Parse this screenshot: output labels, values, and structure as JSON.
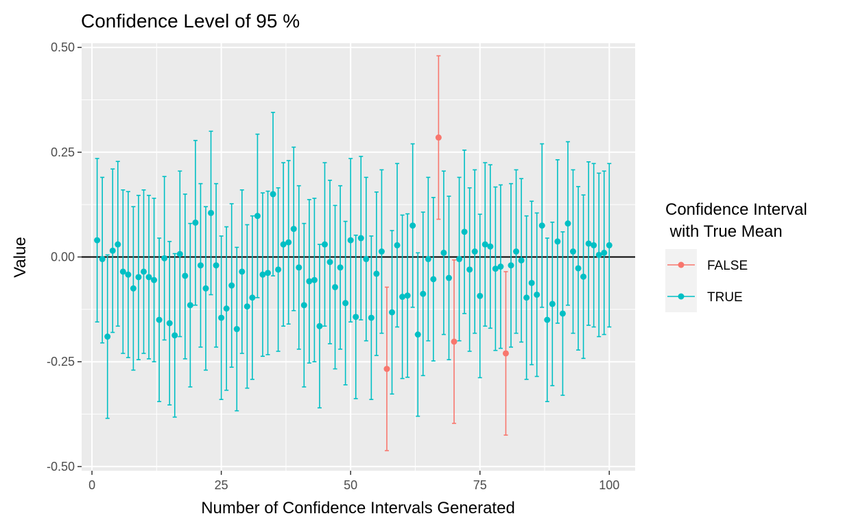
{
  "chart_data": {
    "type": "errorbar",
    "title": "Confidence Level of 95 %",
    "xlabel": "Number of Confidence Intervals Generated",
    "ylabel": "Value",
    "xlim": [
      -2,
      105
    ],
    "ylim": [
      -0.51,
      0.51
    ],
    "x_ticks": [
      {
        "value": 0,
        "label": "0"
      },
      {
        "value": 25,
        "label": "25"
      },
      {
        "value": 50,
        "label": "50"
      },
      {
        "value": 75,
        "label": "75"
      },
      {
        "value": 100,
        "label": "100"
      }
    ],
    "y_ticks": [
      {
        "value": -0.5,
        "label": "-0.50"
      },
      {
        "value": -0.25,
        "label": "-0.25"
      },
      {
        "value": 0,
        "label": "0.00"
      },
      {
        "value": 0.25,
        "label": "0.25"
      },
      {
        "value": 0.5,
        "label": "0.50"
      }
    ],
    "reference_line": 0,
    "grid": true,
    "legend": {
      "title_lines": [
        "Confidence Interval",
        " with True Mean"
      ],
      "position": "right",
      "entries": [
        {
          "label": "FALSE",
          "color": "#F8766D"
        },
        {
          "label": "TRUE",
          "color": "#00BFC4"
        }
      ]
    },
    "colors": {
      "FALSE": "#F8766D",
      "TRUE": "#00BFC4",
      "panel": "#EBEBEB",
      "grid": "#FFFFFF",
      "reference": "#000000"
    },
    "points": [
      {
        "x": 1,
        "mean": 0.04,
        "lower": -0.155,
        "upper": 0.235,
        "contains_true_mean": "TRUE"
      },
      {
        "x": 2,
        "mean": -0.005,
        "lower": -0.205,
        "upper": 0.19,
        "contains_true_mean": "TRUE"
      },
      {
        "x": 3,
        "mean": -0.19,
        "lower": -0.385,
        "upper": 0.005,
        "contains_true_mean": "TRUE"
      },
      {
        "x": 4,
        "mean": 0.015,
        "lower": -0.18,
        "upper": 0.21,
        "contains_true_mean": "TRUE"
      },
      {
        "x": 5,
        "mean": 0.03,
        "lower": -0.165,
        "upper": 0.228,
        "contains_true_mean": "TRUE"
      },
      {
        "x": 6,
        "mean": -0.035,
        "lower": -0.23,
        "upper": 0.16,
        "contains_true_mean": "TRUE"
      },
      {
        "x": 7,
        "mean": -0.042,
        "lower": -0.24,
        "upper": 0.156,
        "contains_true_mean": "TRUE"
      },
      {
        "x": 8,
        "mean": -0.075,
        "lower": -0.27,
        "upper": 0.12,
        "contains_true_mean": "TRUE"
      },
      {
        "x": 9,
        "mean": -0.048,
        "lower": -0.245,
        "upper": 0.147,
        "contains_true_mean": "TRUE"
      },
      {
        "x": 10,
        "mean": -0.035,
        "lower": -0.23,
        "upper": 0.16,
        "contains_true_mean": "TRUE"
      },
      {
        "x": 11,
        "mean": -0.048,
        "lower": -0.243,
        "upper": 0.147,
        "contains_true_mean": "TRUE"
      },
      {
        "x": 12,
        "mean": -0.055,
        "lower": -0.25,
        "upper": 0.14,
        "contains_true_mean": "TRUE"
      },
      {
        "x": 13,
        "mean": -0.15,
        "lower": -0.345,
        "upper": 0.045,
        "contains_true_mean": "TRUE"
      },
      {
        "x": 14,
        "mean": -0.003,
        "lower": -0.198,
        "upper": 0.192,
        "contains_true_mean": "TRUE"
      },
      {
        "x": 15,
        "mean": -0.158,
        "lower": -0.353,
        "upper": 0.037,
        "contains_true_mean": "TRUE"
      },
      {
        "x": 16,
        "mean": -0.187,
        "lower": -0.382,
        "upper": 0.008,
        "contains_true_mean": "TRUE"
      },
      {
        "x": 17,
        "mean": 0.007,
        "lower": -0.19,
        "upper": 0.205,
        "contains_true_mean": "TRUE"
      },
      {
        "x": 18,
        "mean": -0.045,
        "lower": -0.243,
        "upper": 0.15,
        "contains_true_mean": "TRUE"
      },
      {
        "x": 19,
        "mean": -0.115,
        "lower": -0.31,
        "upper": 0.08,
        "contains_true_mean": "TRUE"
      },
      {
        "x": 20,
        "mean": 0.082,
        "lower": -0.115,
        "upper": 0.278,
        "contains_true_mean": "TRUE"
      },
      {
        "x": 21,
        "mean": -0.02,
        "lower": -0.215,
        "upper": 0.175,
        "contains_true_mean": "TRUE"
      },
      {
        "x": 22,
        "mean": -0.075,
        "lower": -0.27,
        "upper": 0.12,
        "contains_true_mean": "TRUE"
      },
      {
        "x": 23,
        "mean": 0.105,
        "lower": -0.09,
        "upper": 0.3,
        "contains_true_mean": "TRUE"
      },
      {
        "x": 24,
        "mean": -0.02,
        "lower": -0.215,
        "upper": 0.175,
        "contains_true_mean": "TRUE"
      },
      {
        "x": 25,
        "mean": -0.145,
        "lower": -0.34,
        "upper": 0.05,
        "contains_true_mean": "TRUE"
      },
      {
        "x": 26,
        "mean": -0.123,
        "lower": -0.318,
        "upper": 0.072,
        "contains_true_mean": "TRUE"
      },
      {
        "x": 27,
        "mean": -0.068,
        "lower": -0.263,
        "upper": 0.127,
        "contains_true_mean": "TRUE"
      },
      {
        "x": 28,
        "mean": -0.172,
        "lower": -0.367,
        "upper": 0.023,
        "contains_true_mean": "TRUE"
      },
      {
        "x": 29,
        "mean": -0.035,
        "lower": -0.23,
        "upper": 0.16,
        "contains_true_mean": "TRUE"
      },
      {
        "x": 30,
        "mean": -0.118,
        "lower": -0.313,
        "upper": 0.077,
        "contains_true_mean": "TRUE"
      },
      {
        "x": 31,
        "mean": -0.097,
        "lower": -0.292,
        "upper": 0.098,
        "contains_true_mean": "TRUE"
      },
      {
        "x": 32,
        "mean": 0.098,
        "lower": -0.097,
        "upper": 0.293,
        "contains_true_mean": "TRUE"
      },
      {
        "x": 33,
        "mean": -0.042,
        "lower": -0.237,
        "upper": 0.153,
        "contains_true_mean": "TRUE"
      },
      {
        "x": 34,
        "mean": -0.038,
        "lower": -0.233,
        "upper": 0.157,
        "contains_true_mean": "TRUE"
      },
      {
        "x": 35,
        "mean": 0.15,
        "lower": -0.045,
        "upper": 0.345,
        "contains_true_mean": "TRUE"
      },
      {
        "x": 36,
        "mean": -0.03,
        "lower": -0.225,
        "upper": 0.165,
        "contains_true_mean": "TRUE"
      },
      {
        "x": 37,
        "mean": 0.03,
        "lower": -0.165,
        "upper": 0.225,
        "contains_true_mean": "TRUE"
      },
      {
        "x": 38,
        "mean": 0.035,
        "lower": -0.16,
        "upper": 0.23,
        "contains_true_mean": "TRUE"
      },
      {
        "x": 39,
        "mean": 0.067,
        "lower": -0.128,
        "upper": 0.262,
        "contains_true_mean": "TRUE"
      },
      {
        "x": 40,
        "mean": -0.025,
        "lower": -0.22,
        "upper": 0.17,
        "contains_true_mean": "TRUE"
      },
      {
        "x": 41,
        "mean": -0.115,
        "lower": -0.31,
        "upper": 0.08,
        "contains_true_mean": "TRUE"
      },
      {
        "x": 42,
        "mean": -0.058,
        "lower": -0.253,
        "upper": 0.137,
        "contains_true_mean": "TRUE"
      },
      {
        "x": 43,
        "mean": -0.055,
        "lower": -0.25,
        "upper": 0.14,
        "contains_true_mean": "TRUE"
      },
      {
        "x": 44,
        "mean": -0.165,
        "lower": -0.36,
        "upper": 0.03,
        "contains_true_mean": "TRUE"
      },
      {
        "x": 45,
        "mean": 0.03,
        "lower": -0.165,
        "upper": 0.225,
        "contains_true_mean": "TRUE"
      },
      {
        "x": 46,
        "mean": -0.012,
        "lower": -0.207,
        "upper": 0.183,
        "contains_true_mean": "TRUE"
      },
      {
        "x": 47,
        "mean": -0.072,
        "lower": -0.267,
        "upper": 0.123,
        "contains_true_mean": "TRUE"
      },
      {
        "x": 48,
        "mean": -0.025,
        "lower": -0.22,
        "upper": 0.17,
        "contains_true_mean": "TRUE"
      },
      {
        "x": 49,
        "mean": -0.11,
        "lower": -0.305,
        "upper": 0.085,
        "contains_true_mean": "TRUE"
      },
      {
        "x": 50,
        "mean": 0.04,
        "lower": -0.155,
        "upper": 0.235,
        "contains_true_mean": "TRUE"
      },
      {
        "x": 51,
        "mean": -0.143,
        "lower": -0.338,
        "upper": 0.052,
        "contains_true_mean": "TRUE"
      },
      {
        "x": 52,
        "mean": 0.045,
        "lower": -0.15,
        "upper": 0.24,
        "contains_true_mean": "TRUE"
      },
      {
        "x": 53,
        "mean": -0.005,
        "lower": -0.2,
        "upper": 0.19,
        "contains_true_mean": "TRUE"
      },
      {
        "x": 54,
        "mean": -0.145,
        "lower": -0.34,
        "upper": 0.05,
        "contains_true_mean": "TRUE"
      },
      {
        "x": 55,
        "mean": -0.04,
        "lower": -0.235,
        "upper": 0.155,
        "contains_true_mean": "TRUE"
      },
      {
        "x": 56,
        "mean": 0.013,
        "lower": -0.182,
        "upper": 0.208,
        "contains_true_mean": "TRUE"
      },
      {
        "x": 57,
        "mean": -0.267,
        "lower": -0.462,
        "upper": -0.072,
        "contains_true_mean": "FALSE"
      },
      {
        "x": 58,
        "mean": -0.132,
        "lower": -0.327,
        "upper": 0.063,
        "contains_true_mean": "TRUE"
      },
      {
        "x": 59,
        "mean": 0.028,
        "lower": -0.167,
        "upper": 0.223,
        "contains_true_mean": "TRUE"
      },
      {
        "x": 60,
        "mean": -0.095,
        "lower": -0.29,
        "upper": 0.1,
        "contains_true_mean": "TRUE"
      },
      {
        "x": 61,
        "mean": -0.092,
        "lower": -0.287,
        "upper": 0.103,
        "contains_true_mean": "TRUE"
      },
      {
        "x": 62,
        "mean": 0.075,
        "lower": -0.12,
        "upper": 0.27,
        "contains_true_mean": "TRUE"
      },
      {
        "x": 63,
        "mean": -0.185,
        "lower": -0.38,
        "upper": 0.01,
        "contains_true_mean": "TRUE"
      },
      {
        "x": 64,
        "mean": -0.088,
        "lower": -0.283,
        "upper": 0.107,
        "contains_true_mean": "TRUE"
      },
      {
        "x": 65,
        "mean": -0.005,
        "lower": -0.2,
        "upper": 0.19,
        "contains_true_mean": "TRUE"
      },
      {
        "x": 66,
        "mean": -0.053,
        "lower": -0.248,
        "upper": 0.142,
        "contains_true_mean": "TRUE"
      },
      {
        "x": 67,
        "mean": 0.285,
        "lower": 0.09,
        "upper": 0.48,
        "contains_true_mean": "FALSE"
      },
      {
        "x": 68,
        "mean": 0.01,
        "lower": -0.185,
        "upper": 0.205,
        "contains_true_mean": "TRUE"
      },
      {
        "x": 69,
        "mean": -0.05,
        "lower": -0.245,
        "upper": 0.145,
        "contains_true_mean": "TRUE"
      },
      {
        "x": 70,
        "mean": -0.202,
        "lower": -0.397,
        "upper": -0.007,
        "contains_true_mean": "FALSE"
      },
      {
        "x": 71,
        "mean": -0.005,
        "lower": -0.2,
        "upper": 0.19,
        "contains_true_mean": "TRUE"
      },
      {
        "x": 72,
        "mean": 0.06,
        "lower": -0.135,
        "upper": 0.255,
        "contains_true_mean": "TRUE"
      },
      {
        "x": 73,
        "mean": -0.03,
        "lower": -0.225,
        "upper": 0.165,
        "contains_true_mean": "TRUE"
      },
      {
        "x": 74,
        "mean": 0.013,
        "lower": -0.182,
        "upper": 0.208,
        "contains_true_mean": "TRUE"
      },
      {
        "x": 75,
        "mean": -0.093,
        "lower": -0.288,
        "upper": 0.102,
        "contains_true_mean": "TRUE"
      },
      {
        "x": 76,
        "mean": 0.03,
        "lower": -0.165,
        "upper": 0.225,
        "contains_true_mean": "TRUE"
      },
      {
        "x": 77,
        "mean": 0.025,
        "lower": -0.17,
        "upper": 0.22,
        "contains_true_mean": "TRUE"
      },
      {
        "x": 78,
        "mean": -0.028,
        "lower": -0.223,
        "upper": 0.167,
        "contains_true_mean": "TRUE"
      },
      {
        "x": 79,
        "mean": -0.023,
        "lower": -0.218,
        "upper": 0.172,
        "contains_true_mean": "TRUE"
      },
      {
        "x": 80,
        "mean": -0.23,
        "lower": -0.425,
        "upper": -0.035,
        "contains_true_mean": "FALSE"
      },
      {
        "x": 81,
        "mean": -0.02,
        "lower": -0.215,
        "upper": 0.175,
        "contains_true_mean": "TRUE"
      },
      {
        "x": 82,
        "mean": 0.013,
        "lower": -0.182,
        "upper": 0.208,
        "contains_true_mean": "TRUE"
      },
      {
        "x": 83,
        "mean": -0.008,
        "lower": -0.203,
        "upper": 0.187,
        "contains_true_mean": "TRUE"
      },
      {
        "x": 84,
        "mean": -0.097,
        "lower": -0.292,
        "upper": 0.098,
        "contains_true_mean": "TRUE"
      },
      {
        "x": 85,
        "mean": -0.062,
        "lower": -0.257,
        "upper": 0.133,
        "contains_true_mean": "TRUE"
      },
      {
        "x": 86,
        "mean": -0.09,
        "lower": -0.285,
        "upper": 0.105,
        "contains_true_mean": "TRUE"
      },
      {
        "x": 87,
        "mean": 0.075,
        "lower": -0.12,
        "upper": 0.27,
        "contains_true_mean": "TRUE"
      },
      {
        "x": 88,
        "mean": -0.15,
        "lower": -0.345,
        "upper": 0.045,
        "contains_true_mean": "TRUE"
      },
      {
        "x": 89,
        "mean": -0.112,
        "lower": -0.307,
        "upper": 0.083,
        "contains_true_mean": "TRUE"
      },
      {
        "x": 90,
        "mean": 0.037,
        "lower": -0.158,
        "upper": 0.232,
        "contains_true_mean": "TRUE"
      },
      {
        "x": 91,
        "mean": -0.135,
        "lower": -0.33,
        "upper": 0.06,
        "contains_true_mean": "TRUE"
      },
      {
        "x": 92,
        "mean": 0.08,
        "lower": -0.115,
        "upper": 0.275,
        "contains_true_mean": "TRUE"
      },
      {
        "x": 93,
        "mean": 0.013,
        "lower": -0.182,
        "upper": 0.208,
        "contains_true_mean": "TRUE"
      },
      {
        "x": 94,
        "mean": -0.027,
        "lower": -0.222,
        "upper": 0.168,
        "contains_true_mean": "TRUE"
      },
      {
        "x": 95,
        "mean": -0.047,
        "lower": -0.242,
        "upper": 0.148,
        "contains_true_mean": "TRUE"
      },
      {
        "x": 96,
        "mean": 0.032,
        "lower": -0.163,
        "upper": 0.227,
        "contains_true_mean": "TRUE"
      },
      {
        "x": 97,
        "mean": 0.028,
        "lower": -0.167,
        "upper": 0.223,
        "contains_true_mean": "TRUE"
      },
      {
        "x": 98,
        "mean": 0.005,
        "lower": -0.19,
        "upper": 0.2,
        "contains_true_mean": "TRUE"
      },
      {
        "x": 99,
        "mean": 0.01,
        "lower": -0.185,
        "upper": 0.205,
        "contains_true_mean": "TRUE"
      },
      {
        "x": 100,
        "mean": 0.028,
        "lower": -0.167,
        "upper": 0.223,
        "contains_true_mean": "TRUE"
      }
    ]
  }
}
